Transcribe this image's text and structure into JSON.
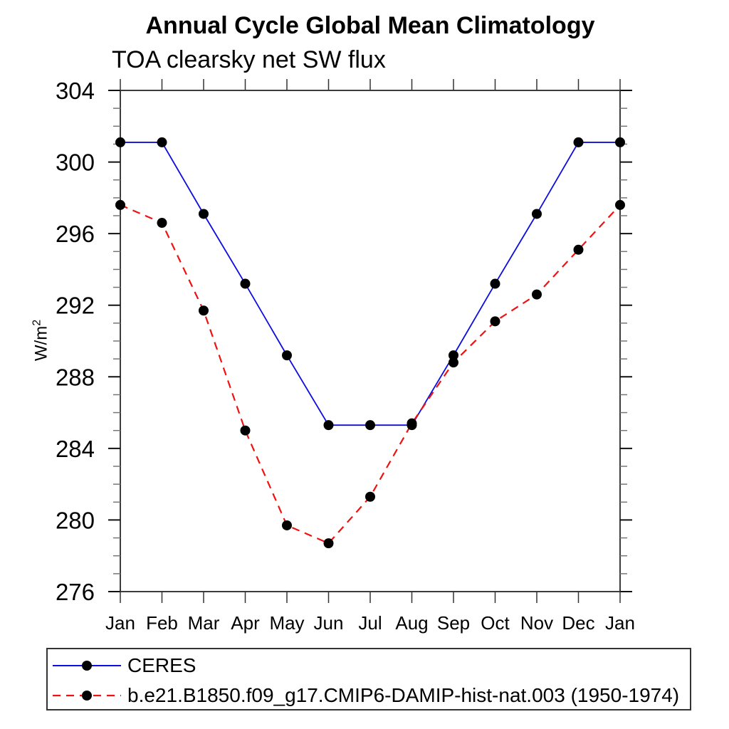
{
  "page": {
    "background": "#ffffff"
  },
  "chart_data": {
    "type": "line",
    "title": "Annual Cycle Global Mean Climatology",
    "subtitle": "TOA clearsky net SW flux",
    "ylabel_base": "W/m",
    "ylabel_sup": "2",
    "categories": [
      "Jan",
      "Feb",
      "Mar",
      "Apr",
      "May",
      "Jun",
      "Jul",
      "Aug",
      "Sep",
      "Oct",
      "Nov",
      "Dec",
      "Jan"
    ],
    "ylim": [
      276,
      304
    ],
    "ytick_major_step": 4,
    "ytick_minor_step": 1,
    "ytick_labels": [
      "276",
      "280",
      "284",
      "288",
      "292",
      "296",
      "300",
      "304"
    ],
    "grid": false,
    "legend_position": "bottom-left",
    "marker": {
      "shape": "circle",
      "color": "#000000"
    },
    "axis_color": "#3c3c3c",
    "series": [
      {
        "name": "CERES",
        "color": "#0d0de0",
        "style": "solid",
        "values": [
          301.1,
          301.1,
          297.1,
          293.2,
          289.2,
          285.3,
          285.3,
          285.3,
          289.2,
          293.2,
          297.1,
          301.1,
          301.1
        ]
      },
      {
        "name": "b.e21.B1850.f09_g17.CMIP6-DAMIP-hist-nat.003 (1950-1974)",
        "color": "#ee1212",
        "style": "dashed",
        "values": [
          297.6,
          296.6,
          291.7,
          285.0,
          279.7,
          278.7,
          281.3,
          285.4,
          288.8,
          291.1,
          292.6,
          295.1,
          297.6
        ]
      }
    ]
  }
}
